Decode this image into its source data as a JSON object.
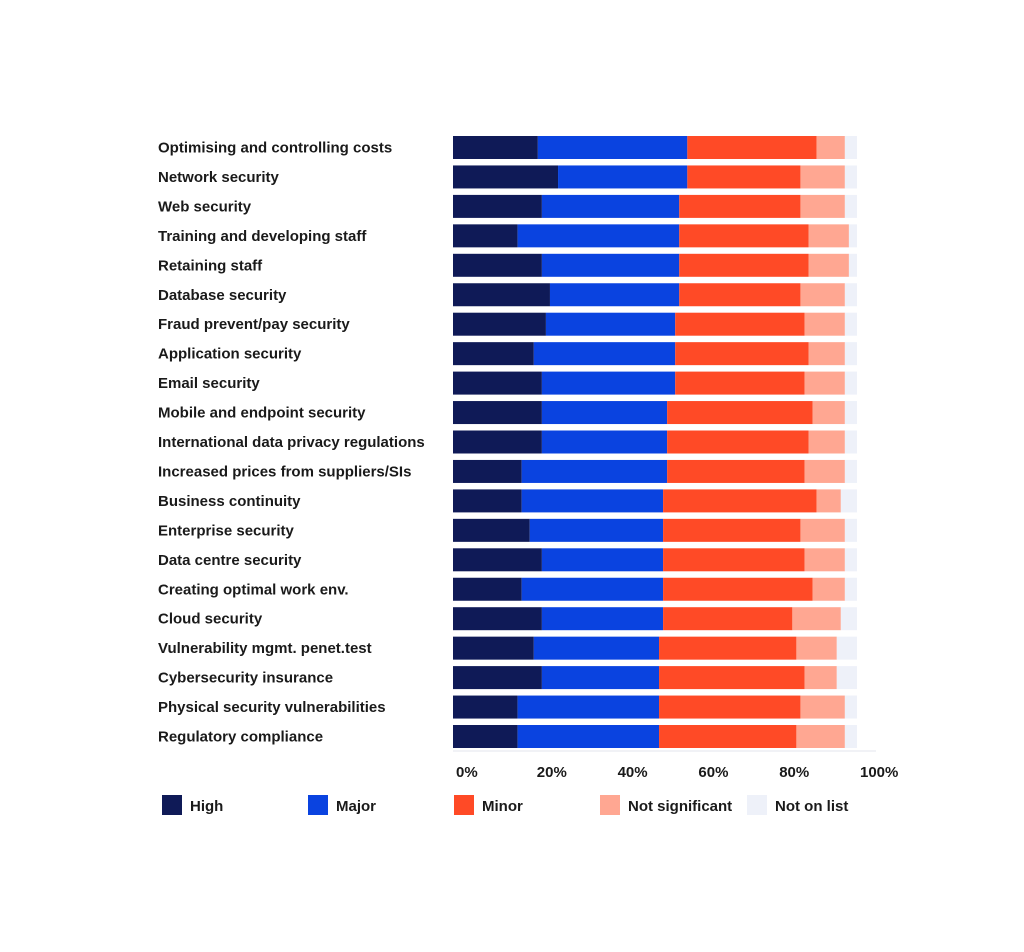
{
  "chart_data": {
    "type": "bar",
    "orientation": "horizontal",
    "stacked": true,
    "categories": [
      "Optimising and controlling costs",
      "Network security",
      "Web security",
      "Training and developing staff",
      "Retaining staff",
      "Database security",
      "Fraud prevent/pay security",
      "Application security",
      "Email security",
      "Mobile and endpoint security",
      "International data privacy regulations",
      "Increased prices from suppliers/SIs",
      "Business continuity",
      "Enterprise security",
      "Data centre security",
      "Creating optimal work env.",
      "Cloud security",
      "Vulnerability mgmt.  penet.test",
      "Cybersecurity insurance",
      "Physical security vulnerabilities",
      "Regulatory compliance"
    ],
    "series": [
      {
        "name": "High",
        "color": "#0f1a57",
        "values": [
          21,
          26,
          22,
          16,
          22,
          24,
          23,
          20,
          22,
          22,
          22,
          17,
          17,
          19,
          22,
          17,
          22,
          20,
          22,
          16,
          16
        ]
      },
      {
        "name": "Major",
        "color": "#0a43e0",
        "values": [
          37,
          32,
          34,
          40,
          34,
          32,
          32,
          35,
          33,
          31,
          31,
          36,
          35,
          33,
          30,
          35,
          30,
          31,
          29,
          35,
          35
        ]
      },
      {
        "name": "Minor",
        "color": "#ff4a26",
        "values": [
          32,
          28,
          30,
          32,
          32,
          30,
          32,
          33,
          32,
          36,
          35,
          34,
          38,
          34,
          35,
          37,
          32,
          34,
          36,
          35,
          34
        ]
      },
      {
        "name": "Not significant",
        "color": "#ffa792",
        "values": [
          7,
          11,
          11,
          10,
          10,
          11,
          10,
          9,
          10,
          8,
          9,
          10,
          6,
          11,
          10,
          8,
          12,
          10,
          8,
          11,
          12
        ]
      },
      {
        "name": "Not on list",
        "color": "#eef1f9",
        "values": [
          3,
          3,
          3,
          2,
          2,
          3,
          3,
          3,
          3,
          3,
          3,
          3,
          4,
          3,
          3,
          3,
          4,
          5,
          5,
          3,
          3
        ]
      }
    ],
    "xlim": [
      0,
      100
    ],
    "x_tick_labels": [
      "0%",
      "20%",
      "40%",
      "60%",
      "80%",
      "100%"
    ],
    "x_ticks": [
      0,
      20,
      40,
      60,
      80,
      100
    ],
    "grid": false,
    "legend_position": "bottom"
  }
}
